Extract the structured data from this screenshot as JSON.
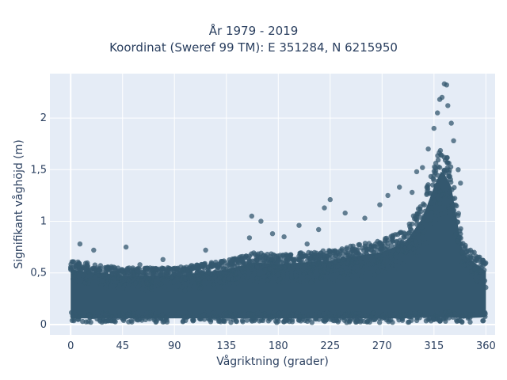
{
  "chart_data": {
    "type": "scatter",
    "title": "År 1979 - 2019",
    "subtitle": "Koordinat (Sweref 99 TM): E 351284, N 6215950",
    "xlabel": "Vågriktning (grader)",
    "ylabel": "Signifikant våghöjd (m)",
    "xlim": [
      -18,
      368
    ],
    "ylim": [
      -0.1,
      2.43
    ],
    "xticks": [
      0,
      45,
      90,
      135,
      180,
      225,
      270,
      315,
      360
    ],
    "yticks": [
      0,
      0.5,
      1,
      1.5,
      2
    ],
    "xtick_labels": [
      "0",
      "45",
      "90",
      "135",
      "180",
      "225",
      "270",
      "315",
      "360"
    ],
    "ytick_labels": [
      "0",
      "0,5",
      "1",
      "1,5",
      "2"
    ],
    "grid": true,
    "background": "#e5ecf6",
    "marker_color": "#34586f",
    "density_envelope": {
      "x": [
        0,
        45,
        90,
        135,
        160,
        180,
        225,
        270,
        290,
        305,
        315,
        322,
        330,
        340,
        360
      ],
      "y_upper": [
        0.62,
        0.55,
        0.55,
        0.62,
        0.7,
        0.68,
        0.72,
        0.82,
        0.92,
        1.2,
        1.55,
        1.75,
        1.55,
        0.8,
        0.6
      ],
      "y_lower": [
        0.02,
        0.02,
        0.02,
        0.02,
        0.02,
        0.02,
        0.02,
        0.02,
        0.02,
        0.03,
        0.03,
        0.03,
        0.03,
        0.02,
        0.03
      ]
    },
    "outliers": [
      {
        "x": 8,
        "y": 0.78
      },
      {
        "x": 20,
        "y": 0.72
      },
      {
        "x": 48,
        "y": 0.75
      },
      {
        "x": 60,
        "y": 0.58
      },
      {
        "x": 80,
        "y": 0.63
      },
      {
        "x": 117,
        "y": 0.72
      },
      {
        "x": 155,
        "y": 0.84
      },
      {
        "x": 157,
        "y": 1.05
      },
      {
        "x": 165,
        "y": 1.0
      },
      {
        "x": 175,
        "y": 0.88
      },
      {
        "x": 185,
        "y": 0.85
      },
      {
        "x": 198,
        "y": 0.96
      },
      {
        "x": 205,
        "y": 0.78
      },
      {
        "x": 215,
        "y": 0.92
      },
      {
        "x": 220,
        "y": 1.13
      },
      {
        "x": 225,
        "y": 1.21
      },
      {
        "x": 238,
        "y": 1.08
      },
      {
        "x": 255,
        "y": 1.03
      },
      {
        "x": 268,
        "y": 1.16
      },
      {
        "x": 275,
        "y": 1.25
      },
      {
        "x": 285,
        "y": 1.33
      },
      {
        "x": 296,
        "y": 1.28
      },
      {
        "x": 300,
        "y": 1.48
      },
      {
        "x": 305,
        "y": 1.52
      },
      {
        "x": 310,
        "y": 1.7
      },
      {
        "x": 315,
        "y": 1.9
      },
      {
        "x": 318,
        "y": 2.05
      },
      {
        "x": 320,
        "y": 2.18
      },
      {
        "x": 322,
        "y": 2.2
      },
      {
        "x": 324,
        "y": 2.33
      },
      {
        "x": 326,
        "y": 2.32
      },
      {
        "x": 327,
        "y": 2.12
      },
      {
        "x": 330,
        "y": 1.95
      },
      {
        "x": 332,
        "y": 1.78
      },
      {
        "x": 336,
        "y": 1.5
      },
      {
        "x": 338,
        "y": 1.37
      }
    ]
  }
}
